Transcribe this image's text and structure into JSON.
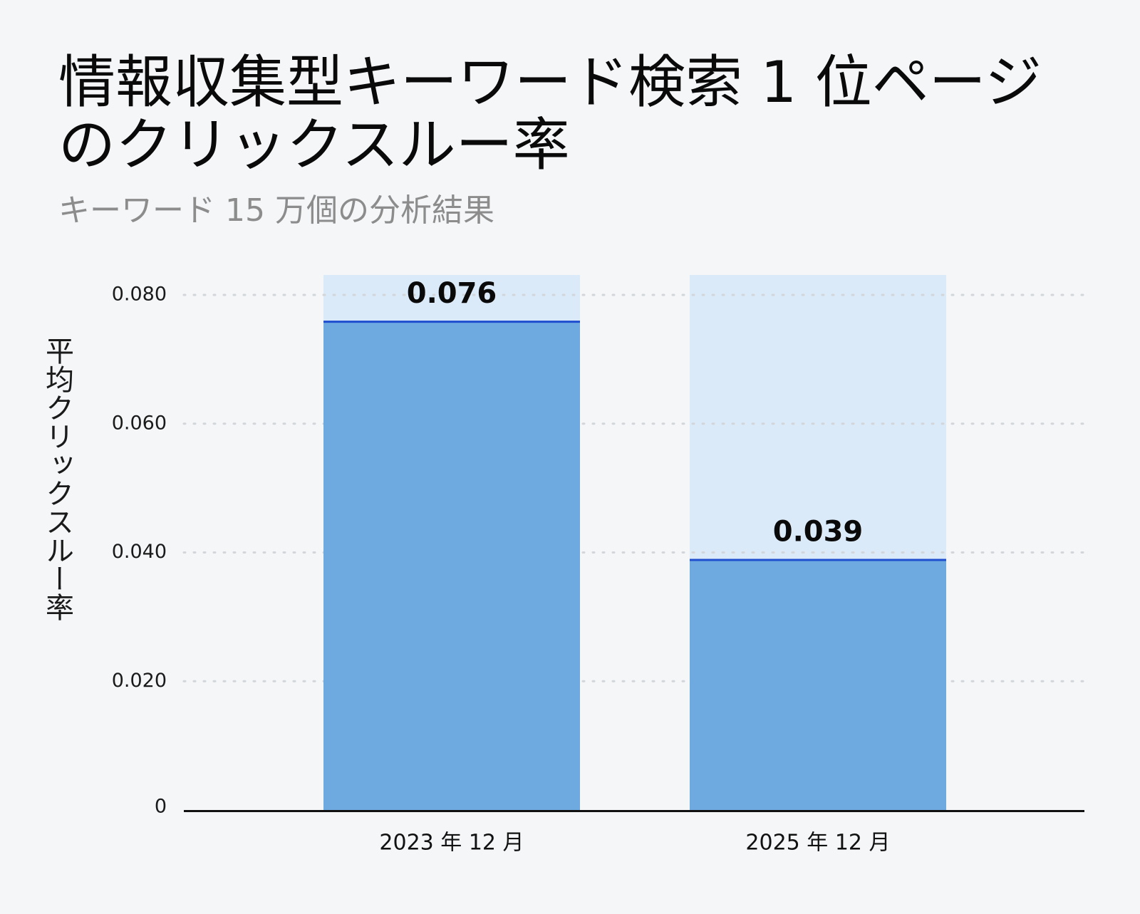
{
  "chart_data": {
    "type": "bar",
    "title": "情報収集型キーワード検索 1 位ページのクリックスルー率",
    "subtitle": "キーワード 15 万個の分析結果",
    "xlabel": "",
    "ylabel": "平均クリックスルー率",
    "categories": [
      "2023 年 12 月",
      "2025 年 12 月"
    ],
    "values": [
      0.076,
      0.039
    ],
    "value_labels": [
      "0.076",
      "0.039"
    ],
    "ylim": [
      0,
      0.08
    ],
    "yticks": [
      0,
      0.02,
      0.04,
      0.06,
      0.08
    ],
    "ytick_labels": [
      "0",
      "0.020",
      "0.040",
      "0.060",
      "0.080"
    ],
    "grid": "horizontal dotted",
    "colors": {
      "bar_fill": "#6eaae0",
      "bar_background": "#dbeaf8",
      "bar_top_line": "#1f4fcf",
      "grid": "#d2d5d9",
      "axis": "#111111",
      "background": "#f4f6f8"
    }
  }
}
